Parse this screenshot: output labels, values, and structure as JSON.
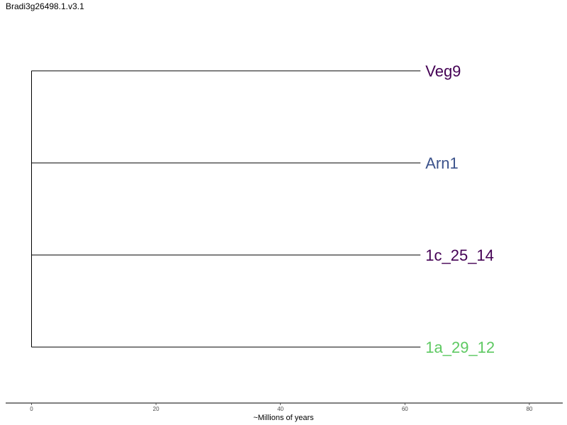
{
  "title": "Bradi3g26498.1.v3.1",
  "chart_data": {
    "type": "tree",
    "title": "Bradi3g26498.1.v3.1",
    "xlabel": "~Millions of years",
    "ylabel": "",
    "xlim": [
      -4,
      85
    ],
    "xticks": [
      0,
      20,
      40,
      60,
      80
    ],
    "xtick_labels": [
      "0",
      "20",
      "40",
      "60",
      "80"
    ],
    "grid": false,
    "root_x": 0,
    "tips": [
      {
        "label": "Veg9",
        "branch_end": 62.5,
        "color": "#440154"
      },
      {
        "label": "Arn1",
        "branch_end": 62.5,
        "color": "#3b528b"
      },
      {
        "label": "1c_25_14",
        "branch_end": 62.5,
        "color": "#440154"
      },
      {
        "label": "1a_29_12",
        "branch_end": 62.5,
        "color": "#5ec962"
      }
    ]
  }
}
